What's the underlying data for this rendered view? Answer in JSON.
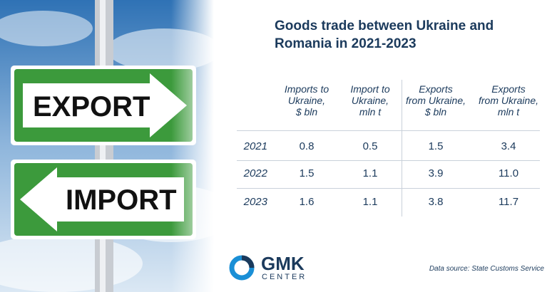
{
  "image": {
    "signs": [
      "EXPORT",
      "IMPORT"
    ]
  },
  "header": {
    "title": "Goods trade between Ukraine and Romania in 2021-2023"
  },
  "table": {
    "columns": [
      "Imports to\nUkraine,\n$ bln",
      "Import to\nUkraine,\nmln t",
      "Exports\nfrom Ukraine,\n$ bln",
      "Exports\nfrom Ukraine,\nmln t"
    ],
    "rows": [
      [
        "2021",
        "0.8",
        "0.5",
        "1.5",
        "3.4"
      ],
      [
        "2022",
        "1.5",
        "1.1",
        "3.9",
        "11.0"
      ],
      [
        "2023",
        "1.6",
        "1.1",
        "3.8",
        "11.7"
      ]
    ]
  },
  "footer": {
    "logo": [
      "GMK",
      "CENTER"
    ],
    "source": "Data source: State Customs Service"
  }
}
